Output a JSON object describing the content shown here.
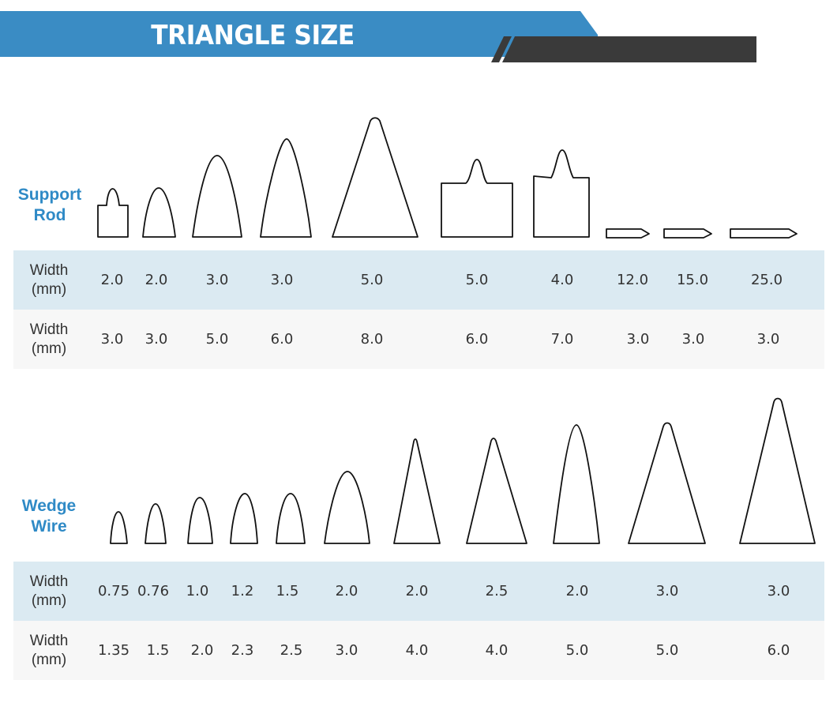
{
  "header": {
    "title": "TRIANGLE SIZE"
  },
  "colors": {
    "banner": "#3a8cc4",
    "accent_bar": "#3a3a3a",
    "label": "#2f8ac6",
    "row_blue": "#dbeaf2",
    "row_grey": "#f7f7f7"
  },
  "support_rod": {
    "label_line1": "Support",
    "label_line2": "Rod",
    "row1": {
      "label_line1": "Width",
      "label_line2": "(mm)",
      "values": [
        "2.0",
        "2.0",
        "3.0",
        "3.0",
        "5.0",
        "5.0",
        "4.0",
        "12.0",
        "15.0",
        "25.0"
      ]
    },
    "row2": {
      "label_line1": "Width",
      "label_line2": "(mm)",
      "values": [
        "3.0",
        "3.0",
        "5.0",
        "6.0",
        "8.0",
        "6.0",
        "7.0",
        "3.0",
        "3.0",
        "3.0"
      ]
    }
  },
  "wedge_wire": {
    "label_line1": "Wedge",
    "label_line2": "Wire",
    "row1": {
      "label_line1": "Width",
      "label_line2": "(mm)",
      "values": [
        "0.75",
        "0.76",
        "1.0",
        "1.2",
        "1.5",
        "2.0",
        "2.0",
        "2.5",
        "2.0",
        "3.0",
        "3.0"
      ]
    },
    "row2": {
      "label_line1": "Width",
      "label_line2": "(mm)",
      "values": [
        "1.35",
        "1.5",
        "2.0",
        "2.3",
        "2.5",
        "3.0",
        "4.0",
        "4.0",
        "5.0",
        "5.0",
        "6.0"
      ]
    }
  }
}
